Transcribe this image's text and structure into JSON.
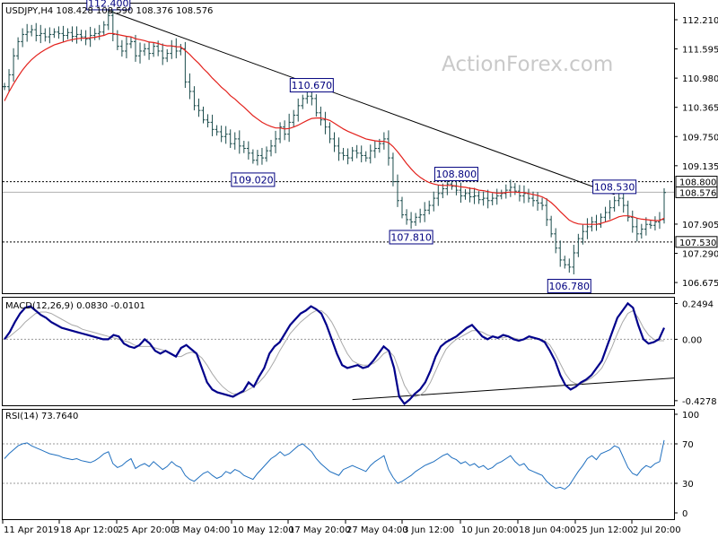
{
  "chart_data": [
    {
      "type": "ohlc",
      "title": "USDJPY,H4  108.428 108.590 108.376 108.576",
      "watermark": "ActionForex.com",
      "ylim": [
        106.45,
        112.55
      ],
      "price_ticks": [
        "112.210",
        "111.595",
        "110.980",
        "110.365",
        "109.750",
        "109.135",
        "107.905",
        "107.290",
        "106.675"
      ],
      "horizontal_levels": [
        {
          "label": "108.800",
          "value": 108.8,
          "style": "dashed"
        },
        {
          "label": "108.576",
          "value": 108.576,
          "style": "solid-gray"
        },
        {
          "label": "107.530",
          "value": 107.53,
          "style": "dashed"
        }
      ],
      "annotations": [
        {
          "label": "112.400",
          "index": 23,
          "value": 112.4,
          "anchor": "above"
        },
        {
          "label": "110.670",
          "index": 68,
          "value": 110.67,
          "anchor": "above"
        },
        {
          "label": "109.020",
          "index": 55,
          "value": 109.02,
          "anchor": "below"
        },
        {
          "label": "108.800",
          "index": 100,
          "value": 108.8,
          "anchor": "above"
        },
        {
          "label": "107.810",
          "index": 90,
          "value": 107.81,
          "anchor": "below"
        },
        {
          "label": "108.530",
          "index": 135,
          "value": 108.53,
          "anchor": "above"
        },
        {
          "label": "106.780",
          "index": 125,
          "value": 106.78,
          "anchor": "below"
        }
      ],
      "trendline": {
        "from": {
          "index": 23,
          "value": 112.4
        },
        "to": {
          "index": 135,
          "value": 108.53
        }
      },
      "close": [
        110.8,
        111.05,
        111.45,
        111.75,
        111.9,
        111.95,
        112.0,
        111.88,
        111.92,
        111.85,
        111.9,
        111.95,
        111.92,
        111.88,
        111.94,
        111.86,
        111.9,
        111.85,
        111.8,
        111.88,
        111.92,
        111.95,
        112.1,
        112.3,
        111.9,
        111.65,
        111.55,
        111.7,
        111.75,
        111.45,
        111.55,
        111.6,
        111.5,
        111.65,
        111.55,
        111.4,
        111.5,
        111.65,
        111.55,
        111.6,
        110.9,
        110.7,
        110.4,
        110.3,
        110.1,
        110.05,
        109.9,
        109.85,
        109.75,
        109.8,
        109.6,
        109.7,
        109.55,
        109.5,
        109.4,
        109.25,
        109.35,
        109.3,
        109.45,
        109.55,
        109.7,
        109.95,
        109.8,
        110.05,
        110.2,
        110.4,
        110.55,
        110.6,
        110.55,
        110.25,
        110.1,
        109.95,
        109.7,
        109.55,
        109.4,
        109.35,
        109.3,
        109.45,
        109.4,
        109.35,
        109.3,
        109.45,
        109.5,
        109.6,
        109.7,
        109.3,
        108.8,
        108.4,
        108.1,
        108.0,
        107.95,
        108.05,
        108.1,
        108.2,
        108.3,
        108.45,
        108.55,
        108.65,
        108.75,
        108.7,
        108.62,
        108.5,
        108.55,
        108.48,
        108.5,
        108.42,
        108.45,
        108.4,
        108.45,
        108.5,
        108.55,
        108.62,
        108.68,
        108.6,
        108.5,
        108.55,
        108.45,
        108.4,
        108.35,
        108.3,
        108.0,
        107.7,
        107.4,
        107.15,
        107.05,
        107.0,
        107.3,
        107.6,
        107.75,
        107.85,
        107.95,
        107.9,
        108.05,
        108.15,
        108.25,
        108.4,
        108.45,
        108.3,
        108.05,
        107.85,
        107.7,
        107.8,
        107.9,
        107.88,
        107.95,
        108.0,
        108.57
      ],
      "ma_close": [
        110.5,
        110.69,
        110.86,
        111.01,
        111.15,
        111.27,
        111.37,
        111.45,
        111.52,
        111.58,
        111.63,
        111.68,
        111.71,
        111.74,
        111.77,
        111.79,
        111.81,
        111.82,
        111.82,
        111.83,
        111.84,
        111.86,
        111.88,
        111.92,
        111.92,
        111.9,
        111.88,
        111.86,
        111.85,
        111.81,
        111.79,
        111.77,
        111.74,
        111.73,
        111.71,
        111.68,
        111.66,
        111.66,
        111.64,
        111.64,
        111.56,
        111.48,
        111.38,
        111.29,
        111.18,
        111.09,
        110.98,
        110.89,
        110.79,
        110.71,
        110.61,
        110.54,
        110.45,
        110.37,
        110.28,
        110.19,
        110.12,
        110.05,
        110.0,
        109.96,
        109.93,
        109.93,
        109.91,
        109.92,
        109.95,
        109.99,
        110.04,
        110.09,
        110.13,
        110.14,
        110.14,
        110.12,
        110.09,
        110.03,
        109.97,
        109.91,
        109.86,
        109.82,
        109.78,
        109.74,
        109.7,
        109.68,
        109.66,
        109.65,
        109.65,
        109.62,
        109.54,
        109.43,
        109.31,
        109.18,
        109.07,
        108.97,
        108.89,
        108.83,
        108.78,
        108.75,
        108.73,
        108.72,
        108.72,
        108.72,
        108.71,
        108.69,
        108.68,
        108.66,
        108.65,
        108.62,
        108.61,
        108.59,
        108.57,
        108.56,
        108.56,
        108.57,
        108.58,
        108.58,
        108.57,
        108.57,
        108.55,
        108.53,
        108.51,
        108.48,
        108.43,
        108.36,
        108.27,
        108.17,
        108.08,
        107.99,
        107.94,
        107.91,
        107.9,
        107.9,
        107.9,
        107.9,
        107.92,
        107.95,
        107.98,
        108.02,
        108.06,
        108.08,
        108.08,
        108.06,
        108.03,
        108.01,
        108.0,
        107.99,
        107.98,
        107.98,
        108.03
      ]
    },
    {
      "type": "line",
      "title": "MACD(12,26,9) 0.0830 -0.0101",
      "ylim": [
        -0.46,
        0.29
      ],
      "ticks": [
        {
          "label": "0.2494",
          "value": 0.2494
        },
        {
          "label": "0.00",
          "value": 0.0
        },
        {
          "label": "-0.4278",
          "value": -0.4278
        }
      ],
      "zero_level": 0.0,
      "trendline": {
        "from": {
          "index": 77,
          "value": -0.42
        },
        "to": {
          "index": 145,
          "value": -0.27
        }
      },
      "series": [
        {
          "name": "MACD",
          "color": "#00008b",
          "values": [
            0.0,
            0.05,
            0.12,
            0.18,
            0.22,
            0.23,
            0.2,
            0.17,
            0.15,
            0.12,
            0.1,
            0.08,
            0.07,
            0.06,
            0.05,
            0.04,
            0.03,
            0.02,
            0.01,
            0.0,
            0.0,
            0.03,
            0.02,
            -0.03,
            -0.05,
            -0.06,
            -0.04,
            0.0,
            -0.03,
            -0.08,
            -0.1,
            -0.08,
            -0.1,
            -0.12,
            -0.06,
            -0.04,
            -0.07,
            -0.1,
            -0.2,
            -0.3,
            -0.35,
            -0.37,
            -0.38,
            -0.39,
            -0.4,
            -0.38,
            -0.36,
            -0.3,
            -0.33,
            -0.26,
            -0.2,
            -0.1,
            -0.05,
            -0.02,
            0.04,
            0.1,
            0.14,
            0.18,
            0.2,
            0.23,
            0.21,
            0.18,
            0.1,
            0.0,
            -0.1,
            -0.18,
            -0.2,
            -0.19,
            -0.18,
            -0.2,
            -0.19,
            -0.15,
            -0.1,
            -0.05,
            -0.08,
            -0.2,
            -0.4,
            -0.45,
            -0.42,
            -0.38,
            -0.35,
            -0.3,
            -0.22,
            -0.12,
            -0.05,
            -0.02,
            0.0,
            0.02,
            0.05,
            0.08,
            0.1,
            0.06,
            0.02,
            0.0,
            0.02,
            0.01,
            0.03,
            0.02,
            0.0,
            -0.01,
            0.0,
            0.02,
            0.01,
            0.0,
            -0.02,
            -0.08,
            -0.15,
            -0.25,
            -0.32,
            -0.35,
            -0.33,
            -0.3,
            -0.28,
            -0.25,
            -0.2,
            -0.15,
            -0.05,
            0.05,
            0.15,
            0.2,
            0.25,
            0.22,
            0.1,
            0.0,
            -0.03,
            -0.02,
            0.0,
            0.08
          ]
        },
        {
          "name": "Signal",
          "color": "#a9a9a9",
          "values": [
            0.0,
            0.02,
            0.05,
            0.08,
            0.12,
            0.15,
            0.18,
            0.19,
            0.19,
            0.18,
            0.16,
            0.14,
            0.12,
            0.1,
            0.09,
            0.07,
            0.06,
            0.05,
            0.04,
            0.03,
            0.02,
            0.01,
            0.0,
            -0.01,
            -0.02,
            -0.04,
            -0.05,
            -0.05,
            -0.05,
            -0.06,
            -0.07,
            -0.08,
            -0.1,
            -0.12,
            -0.12,
            -0.1,
            -0.09,
            -0.1,
            -0.13,
            -0.18,
            -0.24,
            -0.29,
            -0.33,
            -0.36,
            -0.38,
            -0.38,
            -0.37,
            -0.35,
            -0.33,
            -0.3,
            -0.26,
            -0.21,
            -0.15,
            -0.08,
            -0.02,
            0.04,
            0.08,
            0.12,
            0.15,
            0.18,
            0.2,
            0.2,
            0.17,
            0.12,
            0.05,
            -0.03,
            -0.1,
            -0.15,
            -0.17,
            -0.18,
            -0.18,
            -0.17,
            -0.14,
            -0.1,
            -0.08,
            -0.12,
            -0.22,
            -0.32,
            -0.38,
            -0.4,
            -0.39,
            -0.36,
            -0.3,
            -0.22,
            -0.14,
            -0.07,
            -0.03,
            0.0,
            0.02,
            0.04,
            0.06,
            0.06,
            0.05,
            0.03,
            0.02,
            0.01,
            0.01,
            0.02,
            0.01,
            0.0,
            0.0,
            0.0,
            0.01,
            0.0,
            -0.01,
            -0.04,
            -0.1,
            -0.17,
            -0.24,
            -0.29,
            -0.31,
            -0.31,
            -0.29,
            -0.27,
            -0.24,
            -0.2,
            -0.13,
            -0.05,
            0.04,
            0.12,
            0.18,
            0.2,
            0.15,
            0.08,
            0.03,
            0.0,
            -0.01,
            -0.01
          ]
        }
      ]
    },
    {
      "type": "line",
      "title": "RSI(14) 73.7640",
      "ylim": [
        0,
        100
      ],
      "ticks": [
        {
          "label": "100",
          "value": 100
        },
        {
          "label": "70",
          "value": 70
        },
        {
          "label": "30",
          "value": 30
        },
        {
          "label": "0",
          "value": 0
        }
      ],
      "levels": [
        70,
        30
      ],
      "series": [
        {
          "name": "RSI",
          "color": "#1f6fbf",
          "values": [
            55,
            60,
            64,
            68,
            70,
            71,
            68,
            66,
            64,
            62,
            60,
            59,
            58,
            56,
            55,
            54,
            55,
            53,
            52,
            51,
            53,
            56,
            60,
            62,
            50,
            46,
            48,
            52,
            55,
            45,
            48,
            50,
            47,
            52,
            48,
            44,
            47,
            52,
            48,
            46,
            38,
            34,
            32,
            36,
            40,
            42,
            38,
            35,
            37,
            42,
            40,
            44,
            42,
            38,
            36,
            34,
            40,
            45,
            50,
            55,
            58,
            62,
            58,
            60,
            64,
            68,
            70,
            66,
            62,
            55,
            50,
            46,
            42,
            40,
            38,
            44,
            46,
            48,
            46,
            44,
            42,
            48,
            52,
            55,
            58,
            44,
            36,
            30,
            32,
            35,
            38,
            42,
            45,
            48,
            50,
            52,
            55,
            58,
            60,
            56,
            54,
            50,
            52,
            48,
            50,
            46,
            48,
            44,
            46,
            50,
            52,
            55,
            58,
            52,
            48,
            50,
            44,
            42,
            40,
            38,
            32,
            28,
            25,
            26,
            24,
            28,
            35,
            42,
            48,
            55,
            58,
            54,
            60,
            62,
            64,
            68,
            66,
            56,
            46,
            40,
            38,
            44,
            48,
            46,
            50,
            52,
            73.76
          ]
        }
      ]
    }
  ],
  "x_axis_labels": [
    "11 Apr 2019",
    "18 Apr 12:00",
    "25 Apr 20:00",
    "3 May 04:00",
    "10 May 12:00",
    "17 May 20:00",
    "27 May 04:00",
    "3 Jun 12:00",
    "10 Jun 20:00",
    "18 Jun 04:00",
    "25 Jun 12:00",
    "2 Jul 20:00"
  ],
  "colors": {
    "bars": "#1a4b4b",
    "ma": "#e3211c",
    "macd": "#00008b",
    "signal": "#a9a9a9",
    "rsi": "#1f6fbf",
    "label_border": "#00007f"
  }
}
